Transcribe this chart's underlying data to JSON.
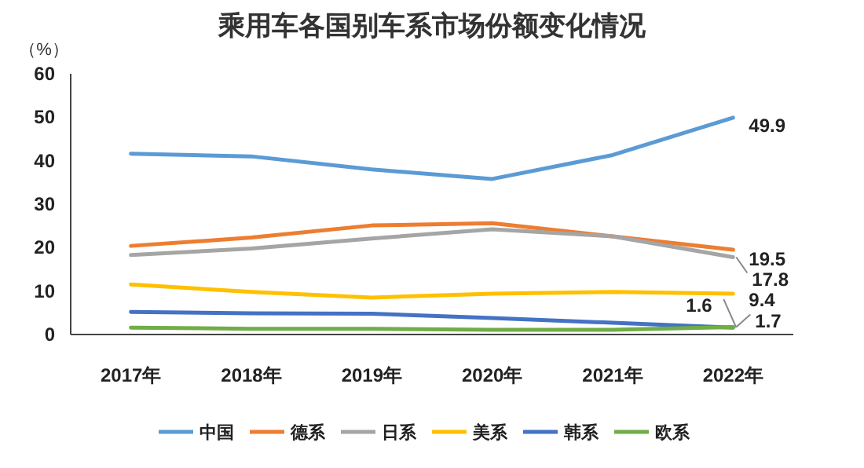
{
  "chart_data": {
    "type": "line",
    "title": "乘用车各国别车系市场份额变化情况",
    "ylabel": "（%）",
    "categories": [
      "2017年",
      "2018年",
      "2019年",
      "2020年",
      "2021年",
      "2022年"
    ],
    "ylim": [
      0,
      60
    ],
    "yticks": [
      0,
      10,
      20,
      30,
      40,
      50,
      60
    ],
    "grid": false,
    "legend": "bottom",
    "marker": "none",
    "line_style": "solid",
    "series": [
      {
        "name": "中国",
        "color": "#5b9bd5",
        "values": [
          41.6,
          41.0,
          38.0,
          35.8,
          41.3,
          49.9
        ],
        "value_labels": [
          null,
          null,
          null,
          null,
          null,
          "49.9"
        ]
      },
      {
        "name": "德系",
        "color": "#ed7d31",
        "values": [
          20.4,
          22.3,
          25.1,
          25.6,
          22.6,
          19.5
        ],
        "value_labels": [
          null,
          null,
          null,
          null,
          null,
          "19.5"
        ]
      },
      {
        "name": "日系",
        "color": "#a5a5a5",
        "values": [
          18.3,
          19.8,
          22.1,
          24.2,
          22.6,
          17.8
        ],
        "value_labels": [
          null,
          null,
          null,
          null,
          null,
          "17.8"
        ]
      },
      {
        "name": "美系",
        "color": "#ffc000",
        "values": [
          11.5,
          9.8,
          8.5,
          9.4,
          9.8,
          9.4
        ],
        "value_labels": [
          null,
          null,
          null,
          null,
          null,
          "9.4"
        ]
      },
      {
        "name": "韩系",
        "color": "#4472c4",
        "values": [
          5.2,
          4.9,
          4.8,
          3.8,
          2.7,
          1.6
        ],
        "value_labels": [
          null,
          null,
          null,
          null,
          null,
          "1.6"
        ]
      },
      {
        "name": "欧系",
        "color": "#70ad47",
        "values": [
          1.6,
          1.3,
          1.3,
          1.1,
          1.1,
          1.7
        ],
        "value_labels": [
          null,
          null,
          null,
          null,
          null,
          "1.7"
        ]
      }
    ]
  }
}
